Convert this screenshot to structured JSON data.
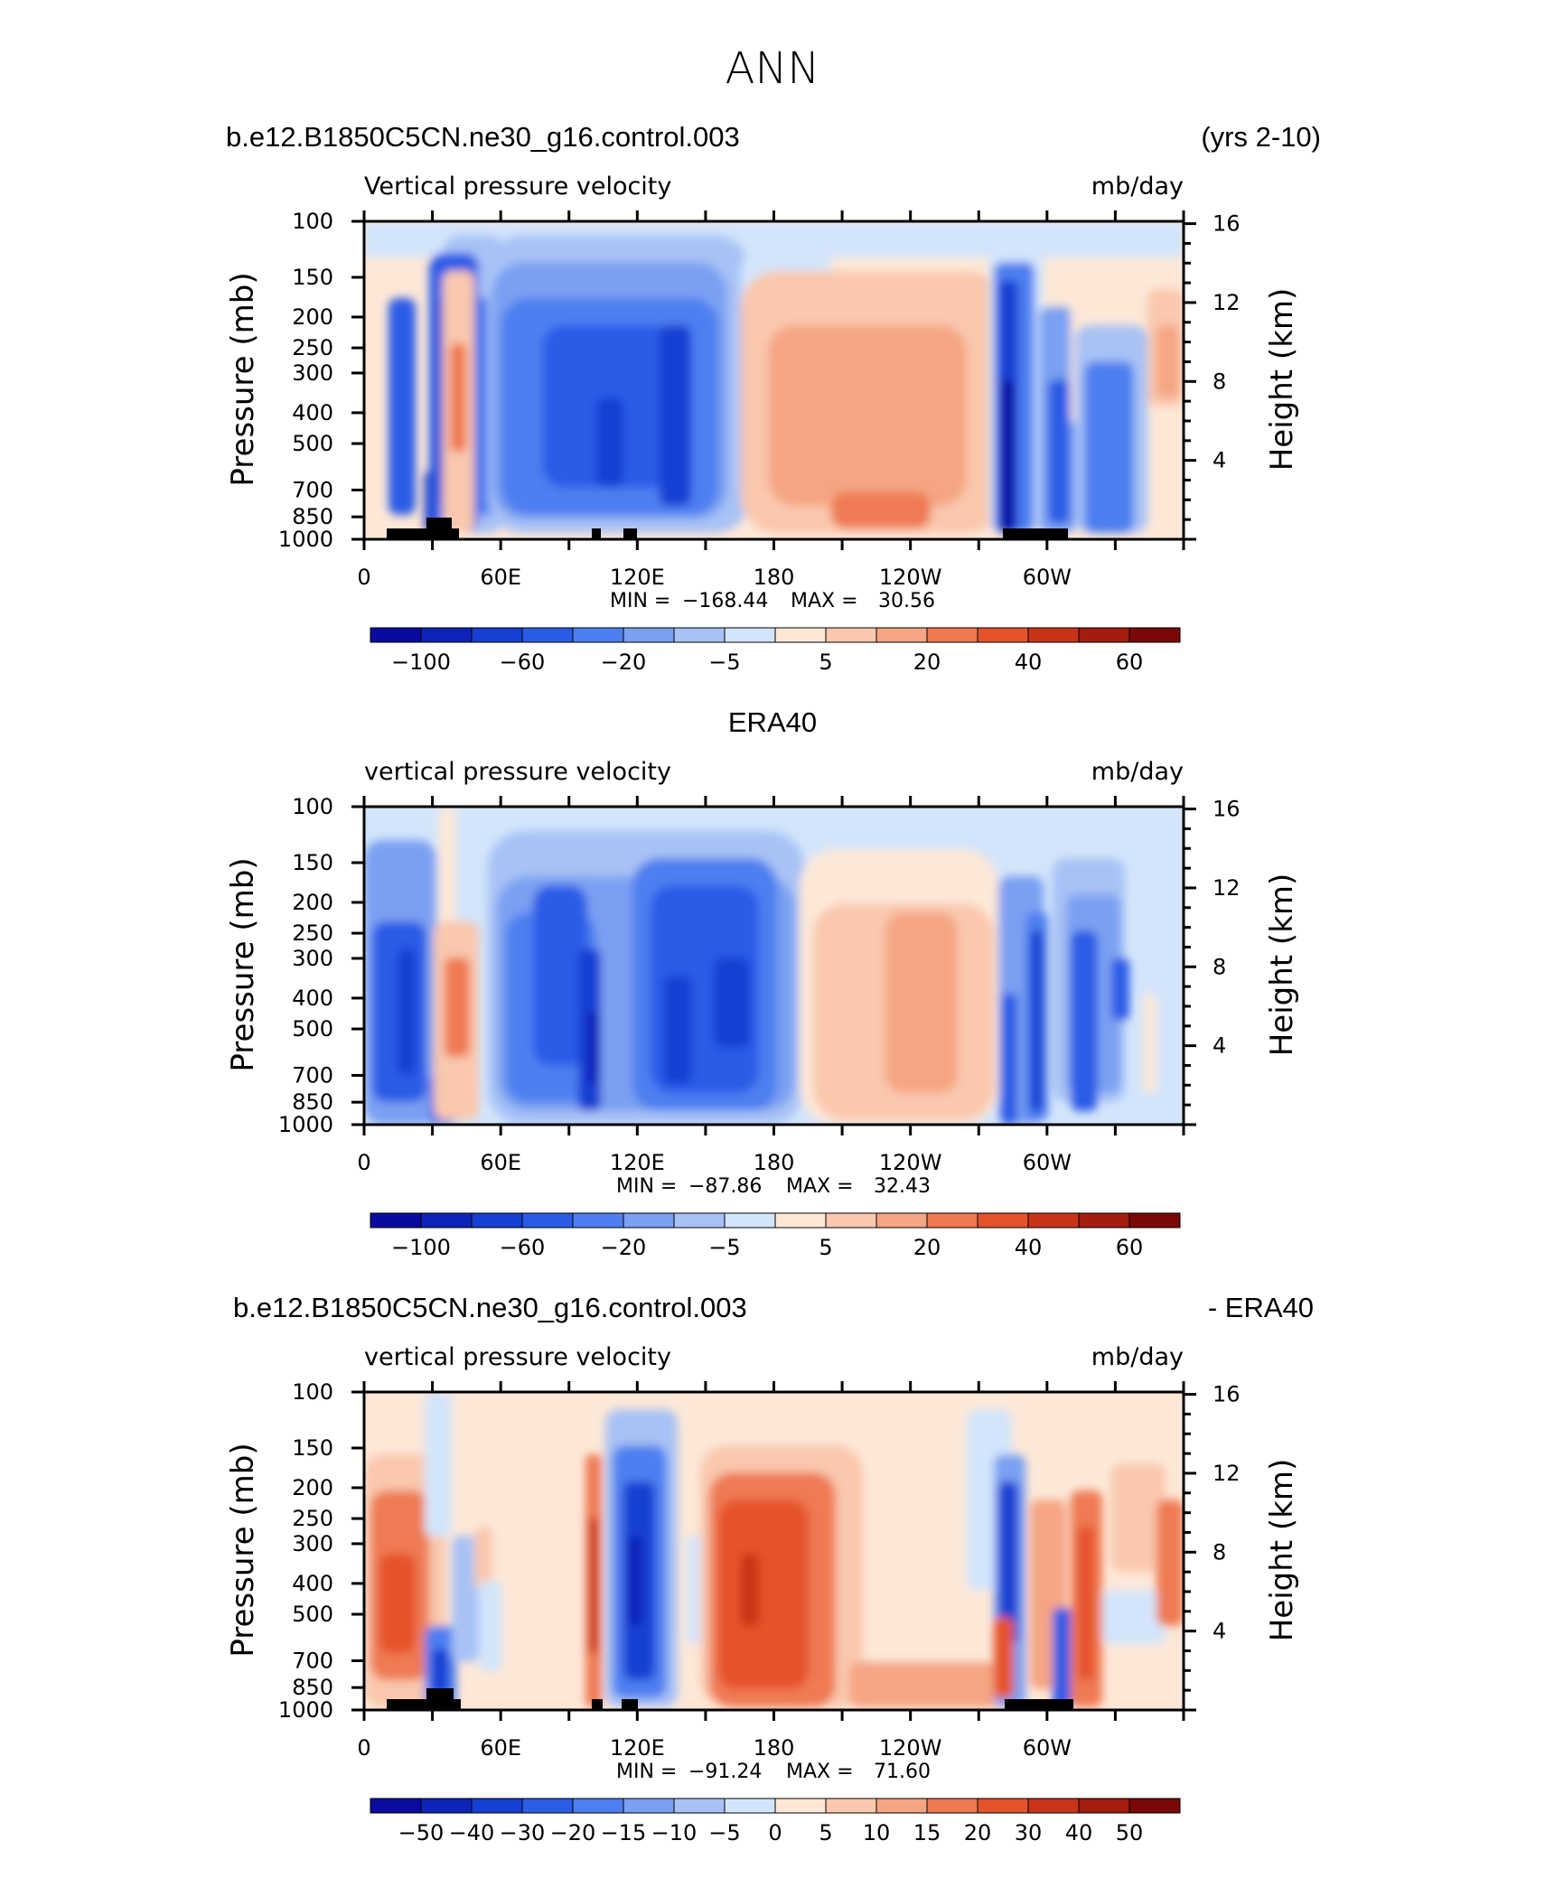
{
  "page": {
    "title": "ANN"
  },
  "panels": [
    {
      "case_name": "b.e12.B1850C5CN.ne30_g16.control.003",
      "right_title": "(yrs 2-10)",
      "center_title": "",
      "variable": "Vertical pressure velocity",
      "units": "mb/day",
      "ylabel": "Pressure (mb)",
      "y2label": "Height (km)",
      "stats": {
        "min_label": "MIN =",
        "min": "−168.44",
        "max_label": "MAX =",
        "max": "30.56"
      },
      "colorbar_labels": [
        "−100",
        "−60",
        "−20",
        "−5",
        "5",
        "20",
        "40",
        "60"
      ],
      "has_terrain": true
    },
    {
      "case_name": "",
      "right_title": "",
      "center_title": "ERA40",
      "variable": "vertical pressure velocity",
      "units": "mb/day",
      "ylabel": "Pressure (mb)",
      "y2label": "Height (km)",
      "stats": {
        "min_label": "MIN =",
        "min": "−87.86",
        "max_label": "MAX =",
        "max": "32.43"
      },
      "colorbar_labels": [
        "−100",
        "−60",
        "−20",
        "−5",
        "5",
        "20",
        "40",
        "60"
      ],
      "has_terrain": false
    },
    {
      "case_name": "b.e12.B1850C5CN.ne30_g16.control.003",
      "right_title": "- ERA40",
      "center_title": "",
      "variable": "vertical pressure velocity",
      "units": "mb/day",
      "ylabel": "Pressure (mb)",
      "y2label": "Height (km)",
      "stats": {
        "min_label": "MIN =",
        "min": "−91.24",
        "max_label": "MAX =",
        "max": "71.60"
      },
      "colorbar_labels": [
        "−50",
        "−40",
        "−30",
        "−20",
        "−15",
        "−10",
        "−5",
        "0",
        "5",
        "10",
        "15",
        "20",
        "30",
        "40",
        "50"
      ],
      "has_terrain": true
    }
  ],
  "chart_data": [
    {
      "type": "heatmap",
      "title": "ANN",
      "subtitle": "b.e12.B1850C5CN.ne30_g16.control.003 (yrs 2-10)",
      "variable": "Vertical pressure velocity",
      "units": "mb/day",
      "xlabel": "",
      "ylabel": "Pressure (mb)",
      "y2label": "Height (km)",
      "x_ticks": [
        "0",
        "60E",
        "120E",
        "180",
        "120W",
        "60W"
      ],
      "y_ticks": [
        "100",
        "150",
        "200",
        "250",
        "300",
        "400",
        "500",
        "700",
        "850",
        "1000"
      ],
      "y2_ticks": [
        "16",
        "12",
        "8",
        "4"
      ],
      "ylim": [
        1000,
        100
      ],
      "y_scale": "log",
      "min": -168.44,
      "max": 30.56,
      "contour_levels": [
        -100,
        -80,
        -60,
        -40,
        -20,
        -10,
        -5,
        0,
        5,
        10,
        20,
        30,
        40,
        50,
        60
      ],
      "colorbar_labels": [
        "−100",
        "−60",
        "−20",
        "−5",
        "5",
        "20",
        "40",
        "60"
      ],
      "approx_features": [
        {
          "lon_range": [
            10,
            40
          ],
          "p_range": [
            1000,
            200
          ],
          "value": -40
        },
        {
          "lon_range": [
            40,
            50
          ],
          "p_range": [
            850,
            250
          ],
          "value": 20
        },
        {
          "lon_range": [
            60,
            160
          ],
          "p_range": [
            1000,
            150
          ],
          "value": -30
        },
        {
          "lon_range": [
            175,
            285
          ],
          "p_range": [
            1000,
            150
          ],
          "value": 10
        },
        {
          "lon_range": [
            210,
            240
          ],
          "p_range": [
            900,
            800
          ],
          "value": 20
        },
        {
          "lon_range": [
            278,
            290
          ],
          "p_range": [
            1000,
            150
          ],
          "value": -100
        },
        {
          "lon_range": [
            300,
            330
          ],
          "p_range": [
            1000,
            250
          ],
          "value": -20
        }
      ]
    },
    {
      "type": "heatmap",
      "title": "ERA40",
      "variable": "vertical pressure velocity",
      "units": "mb/day",
      "xlabel": "",
      "ylabel": "Pressure (mb)",
      "y2label": "Height (km)",
      "x_ticks": [
        "0",
        "60E",
        "120E",
        "180",
        "120W",
        "60W"
      ],
      "y_ticks": [
        "100",
        "150",
        "200",
        "250",
        "300",
        "400",
        "500",
        "700",
        "850",
        "1000"
      ],
      "y2_ticks": [
        "16",
        "12",
        "8",
        "4"
      ],
      "ylim": [
        1000,
        100
      ],
      "y_scale": "log",
      "min": -87.86,
      "max": 32.43,
      "contour_levels": [
        -100,
        -80,
        -60,
        -40,
        -20,
        -10,
        -5,
        0,
        5,
        10,
        20,
        30,
        40,
        50,
        60
      ],
      "colorbar_labels": [
        "−100",
        "−60",
        "−20",
        "−5",
        "5",
        "20",
        "40",
        "60"
      ],
      "approx_features": [
        {
          "lon_range": [
            5,
            35
          ],
          "p_range": [
            1000,
            150
          ],
          "value": -30
        },
        {
          "lon_range": [
            37,
            52
          ],
          "p_range": [
            900,
            300
          ],
          "value": 10
        },
        {
          "lon_range": [
            55,
            110
          ],
          "p_range": [
            1000,
            150
          ],
          "value": -30
        },
        {
          "lon_range": [
            115,
            180
          ],
          "p_range": [
            1000,
            100
          ],
          "value": -30
        },
        {
          "lon_range": [
            195,
            275
          ],
          "p_range": [
            1000,
            150
          ],
          "value": 5
        },
        {
          "lon_range": [
            278,
            330
          ],
          "p_range": [
            1000,
            200
          ],
          "value": -20
        }
      ]
    },
    {
      "type": "heatmap",
      "title": "b.e12.B1850C5CN.ne30_g16.control.003 - ERA40",
      "variable": "vertical pressure velocity",
      "units": "mb/day",
      "xlabel": "",
      "ylabel": "Pressure (mb)",
      "y2label": "Height (km)",
      "x_ticks": [
        "0",
        "60E",
        "120E",
        "180",
        "120W",
        "60W"
      ],
      "y_ticks": [
        "100",
        "150",
        "200",
        "250",
        "300",
        "400",
        "500",
        "700",
        "850",
        "1000"
      ],
      "y2_ticks": [
        "16",
        "12",
        "8",
        "4"
      ],
      "ylim": [
        1000,
        100
      ],
      "y_scale": "log",
      "min": -91.24,
      "max": 71.6,
      "contour_levels": [
        -50,
        -40,
        -30,
        -20,
        -15,
        -10,
        -5,
        0,
        5,
        10,
        15,
        20,
        30,
        40,
        50
      ],
      "colorbar_labels": [
        "−50",
        "−40",
        "−30",
        "−20",
        "−15",
        "−10",
        "−5",
        "0",
        "5",
        "10",
        "15",
        "20",
        "30",
        "40",
        "50"
      ],
      "approx_features": [
        {
          "lon_range": [
            5,
            25
          ],
          "p_range": [
            850,
            200
          ],
          "value": 30
        },
        {
          "lon_range": [
            95,
            100
          ],
          "p_range": [
            900,
            200
          ],
          "value": 30
        },
        {
          "lon_range": [
            100,
            135
          ],
          "p_range": [
            1000,
            150
          ],
          "value": -20
        },
        {
          "lon_range": [
            145,
            190
          ],
          "p_range": [
            1000,
            150
          ],
          "value": 20
        },
        {
          "lon_range": [
            278,
            285
          ],
          "p_range": [
            900,
            150
          ],
          "value": -30
        },
        {
          "lon_range": [
            290,
            305
          ],
          "p_range": [
            850,
            200
          ],
          "value": 20
        },
        {
          "lon_range": [
            340,
            360
          ],
          "p_range": [
            700,
            200
          ],
          "value": 15
        }
      ]
    }
  ],
  "colors": {
    "palette": [
      "#0a0aa0",
      "#0d24b8",
      "#1640d2",
      "#2a5ce6",
      "#4d7ff0",
      "#7aa0f2",
      "#a8c2f5",
      "#d3e5fb",
      "#fde8d8",
      "#f9c8ad",
      "#f5a583",
      "#ef7a52",
      "#e5522c",
      "#c93419",
      "#a41c0f",
      "#7a0806"
    ]
  }
}
